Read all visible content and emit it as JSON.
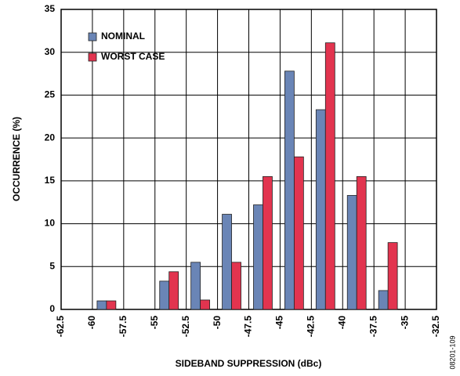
{
  "chart_data": {
    "type": "histogram",
    "xlabel": "SIDEBAND SUPPRESSION (dBc)",
    "ylabel": "OCCURRENCE (%)",
    "annotation": "08201-109",
    "bins": [
      -62.5,
      -60.0,
      -57.5,
      -55.0,
      -52.5,
      -50.0,
      -47.5,
      -45.0,
      -42.5,
      -40.0,
      -37.5,
      -35.0,
      -32.5
    ],
    "series": [
      {
        "name": "NOMINAL",
        "color": "#6a85b6",
        "values": [
          0,
          1.0,
          0,
          3.3,
          5.5,
          11.1,
          12.2,
          27.8,
          23.3,
          13.3,
          2.2,
          0
        ]
      },
      {
        "name": "WORST CASE",
        "color": "#e2344f",
        "values": [
          0,
          1.0,
          0,
          4.4,
          1.1,
          5.5,
          15.5,
          17.8,
          31.1,
          15.5,
          7.8,
          0
        ]
      }
    ],
    "xlim": [
      -62.5,
      -32.5
    ],
    "xticks": [
      -62.5,
      -60.0,
      -57.5,
      -55.0,
      -52.5,
      -50.0,
      -47.5,
      -45.0,
      -42.5,
      -40.0,
      -37.5,
      -35.0,
      -32.5
    ],
    "ylim": [
      0,
      35
    ],
    "yticks": [
      0,
      5,
      10,
      15,
      20,
      25,
      30,
      35
    ],
    "grid": true,
    "legend": "upper left"
  }
}
